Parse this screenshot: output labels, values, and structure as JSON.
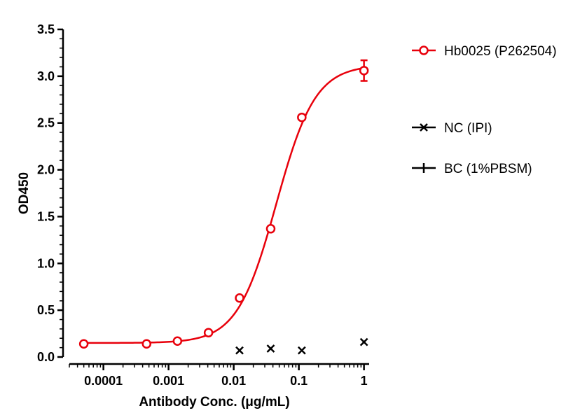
{
  "chart_data": {
    "type": "scatter",
    "title": "",
    "xlabel": "Antibody Conc. (μg/mL)",
    "ylabel": "OD450",
    "x_scale": "log",
    "xlim": [
      3e-05,
      1.2
    ],
    "ylim": [
      0,
      3.5
    ],
    "x_ticks": [
      {
        "value": 0.0001,
        "label": "0.0001"
      },
      {
        "value": 0.001,
        "label": "0.001"
      },
      {
        "value": 0.01,
        "label": "0.01"
      },
      {
        "value": 0.1,
        "label": "0.1"
      },
      {
        "value": 1,
        "label": "1"
      }
    ],
    "y_ticks": [
      {
        "value": 0,
        "label": "0.0"
      },
      {
        "value": 0.5,
        "label": "0.5"
      },
      {
        "value": 1.0,
        "label": "1.0"
      },
      {
        "value": 1.5,
        "label": "1.5"
      },
      {
        "value": 2.0,
        "label": "2.0"
      },
      {
        "value": 2.5,
        "label": "2.5"
      },
      {
        "value": 3.0,
        "label": "3.0"
      },
      {
        "value": 3.5,
        "label": "3.5"
      }
    ],
    "grid": false,
    "legend_position": "right",
    "series": [
      {
        "name": "Hb0025 (P262504)",
        "color": "#e8000b",
        "marker": "circle",
        "fit_curve": true,
        "points": [
          {
            "x": 5e-05,
            "y": 0.14
          },
          {
            "x": 0.00046,
            "y": 0.14
          },
          {
            "x": 0.00137,
            "y": 0.17
          },
          {
            "x": 0.0041,
            "y": 0.26
          },
          {
            "x": 0.0123,
            "y": 0.63
          },
          {
            "x": 0.037,
            "y": 1.37
          },
          {
            "x": 0.111,
            "y": 2.56
          },
          {
            "x": 1.0,
            "y": 3.06,
            "err": 0.11
          }
        ]
      },
      {
        "name": "NC (IPI)",
        "color": "#000000",
        "marker": "x",
        "fit_curve": false,
        "points": [
          {
            "x": 0.0123,
            "y": 0.07
          },
          {
            "x": 0.037,
            "y": 0.09
          },
          {
            "x": 0.111,
            "y": 0.07
          },
          {
            "x": 1.0,
            "y": 0.16
          }
        ]
      },
      {
        "name": "BC (1%PBSM)",
        "color": "#000000",
        "marker": "plus",
        "fit_curve": false,
        "points": []
      }
    ]
  }
}
